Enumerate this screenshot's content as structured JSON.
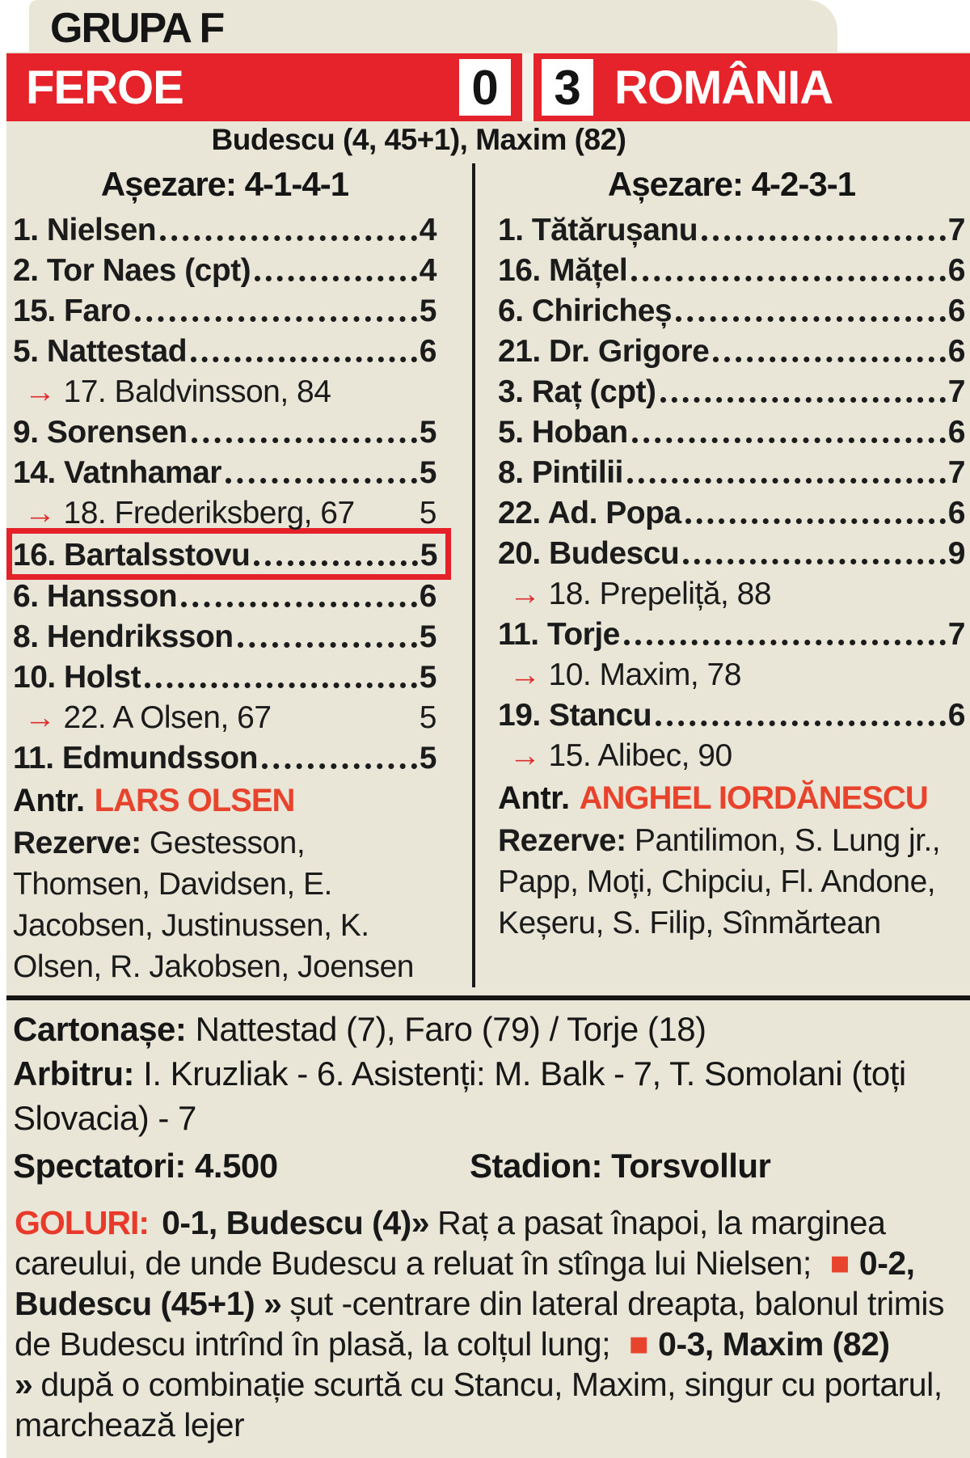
{
  "colors": {
    "background": "#e9e6d8",
    "bar_red": "#e6232a",
    "accent_red": "#e8432d",
    "highlight_box_red": "#e42028",
    "text": "#161616"
  },
  "icons": {
    "sub_arrow": "→",
    "goal_bullet": "■"
  },
  "header": {
    "group_label": "GRUPA F",
    "home_team": "FEROE",
    "home_score": "0",
    "away_score": "3",
    "away_team": "ROMÂNIA",
    "scorers": "Budescu (4, 45+1), Maxim (82)"
  },
  "lineups": {
    "home": {
      "formation_label": "Așezare: 4-1-4-1",
      "rows": [
        {
          "type": "starter",
          "name": "1. Nielsen",
          "rating": "4"
        },
        {
          "type": "starter",
          "name": "2. Tor Naes (cpt)",
          "rating": "4"
        },
        {
          "type": "starter",
          "name": "15. Faro",
          "rating": "5"
        },
        {
          "type": "starter",
          "name": "5. Nattestad",
          "rating": "6"
        },
        {
          "type": "sub",
          "name": "17. Baldvinsson, 84",
          "rating": ""
        },
        {
          "type": "starter",
          "name": "9. Sorensen",
          "rating": "5"
        },
        {
          "type": "starter",
          "name": "14. Vatnhamar",
          "rating": "5"
        },
        {
          "type": "sub",
          "name": "18. Frederiksberg, 67",
          "rating": "5"
        },
        {
          "type": "starter",
          "name": "16. Bartalsstovu",
          "rating": "5",
          "highlight": true
        },
        {
          "type": "starter",
          "name": "6. Hansson",
          "rating": "6"
        },
        {
          "type": "starter",
          "name": "8. Hendriksson",
          "rating": "5"
        },
        {
          "type": "starter",
          "name": "10. Holst",
          "rating": "5"
        },
        {
          "type": "sub",
          "name": "22. A Olsen, 67",
          "rating": "5"
        },
        {
          "type": "starter",
          "name": "11. Edmundsson",
          "rating": "5"
        }
      ],
      "coach_label": "Antr.",
      "coach_name": "LARS OLSEN",
      "reserves_label": "Rezerve:",
      "reserves": " Gestesson, Thomsen, Davidsen, E. Jacobsen, Justinussen, K. Olsen, R. Jakobsen, Joensen"
    },
    "away": {
      "formation_label": "Așezare: 4-2-3-1",
      "rows": [
        {
          "type": "starter",
          "name": "1. Tătărușanu",
          "rating": "7"
        },
        {
          "type": "starter",
          "name": "16. Mățel",
          "rating": "6"
        },
        {
          "type": "starter",
          "name": "6. Chiricheș",
          "rating": "6"
        },
        {
          "type": "starter",
          "name": "21. Dr. Grigore",
          "rating": "6"
        },
        {
          "type": "starter",
          "name": "3. Raț (cpt)",
          "rating": "7"
        },
        {
          "type": "starter",
          "name": "5. Hoban",
          "rating": "6"
        },
        {
          "type": "starter",
          "name": "8. Pintilii",
          "rating": "7"
        },
        {
          "type": "starter",
          "name": "22. Ad. Popa",
          "rating": "6"
        },
        {
          "type": "starter",
          "name": "20. Budescu",
          "rating": "9"
        },
        {
          "type": "sub",
          "name": "18. Prepeliță, 88",
          "rating": ""
        },
        {
          "type": "starter",
          "name": "11. Torje",
          "rating": "7"
        },
        {
          "type": "sub",
          "name": "10. Maxim, 78",
          "rating": ""
        },
        {
          "type": "starter",
          "name": "19. Stancu",
          "rating": "6"
        },
        {
          "type": "sub",
          "name": "15. Alibec, 90",
          "rating": ""
        }
      ],
      "coach_label": "Antr.",
      "coach_name": "ANGHEL IORDĂNESCU",
      "reserves_label": "Rezerve:",
      "reserves": " Pantilimon, S. Lung jr., Papp, Moți, Chipciu, Fl. Andone, Keșeru, S. Filip, Sînmărtean"
    }
  },
  "footer": {
    "cards_label": "Cartonașe:",
    "cards": " Nattestad (7), Faro (79) / Torje (18)",
    "referee_label": "Arbitru:",
    "referee": " I. Kruzliak - 6. Asistenți: M. Balk - 7, T. Somolani (toți Slovacia) - 7",
    "spectators_label": "Spectatori:",
    "spectators": " 4.500",
    "stadium_label": "Stadion:",
    "stadium": " Torsvollur"
  },
  "goals": {
    "label": "GOLURI:",
    "items": [
      {
        "score": "0-1, Budescu (4)»",
        "desc": "Raț a pasat înapoi, la marginea careului, de unde Budescu a reluat în stînga lui Nielsen; "
      },
      {
        "score": "0-2, Budescu (45+1) »",
        "desc": "șut -centrare din lateral dreapta, balonul trimis de Budescu intrînd în plasă, la colțul lung; "
      },
      {
        "score": "0-3, Maxim (82) »",
        "desc": "după o combinație scurtă cu Stancu, Maxim, singur cu portarul, marchează lejer"
      }
    ]
  }
}
